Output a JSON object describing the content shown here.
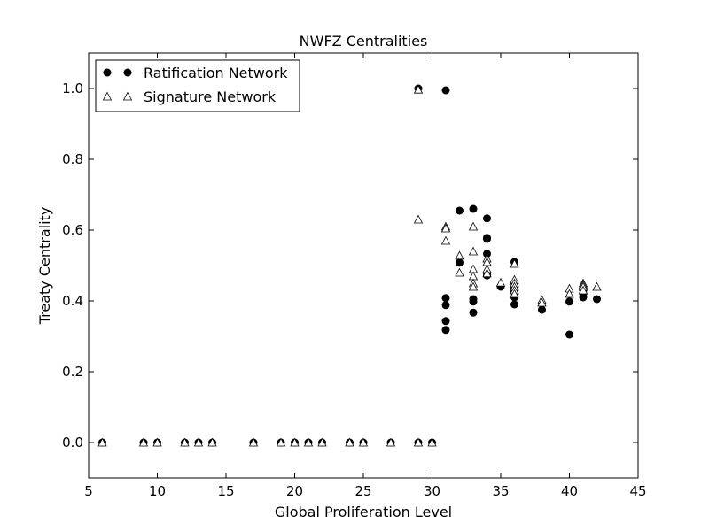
{
  "chart_data": {
    "type": "scatter",
    "title": "NWFZ Centralities",
    "xlabel": "Global Proliferation Level",
    "ylabel": "Treaty Centrality",
    "xlim": [
      5,
      45
    ],
    "ylim": [
      -0.1,
      1.1
    ],
    "xticks": [
      "5",
      "10",
      "15",
      "20",
      "25",
      "30",
      "35",
      "40",
      "45"
    ],
    "yticks": [
      "0.0",
      "0.2",
      "0.4",
      "0.6",
      "0.8",
      "1.0"
    ],
    "grid": false,
    "legend": "top-left",
    "series": [
      {
        "name": "Ratification Network",
        "marker": "filled-circle",
        "color": "#000000",
        "points": [
          [
            6,
            0.0
          ],
          [
            9,
            0.0
          ],
          [
            10,
            0.0
          ],
          [
            12,
            0.0
          ],
          [
            13,
            0.0
          ],
          [
            14,
            0.0
          ],
          [
            17,
            0.0
          ],
          [
            19,
            0.0
          ],
          [
            20,
            0.0
          ],
          [
            21,
            0.0
          ],
          [
            22,
            0.0
          ],
          [
            24,
            0.0
          ],
          [
            25,
            0.0
          ],
          [
            27,
            0.0
          ],
          [
            29,
            0.0
          ],
          [
            30,
            0.0
          ],
          [
            29,
            1.0
          ],
          [
            31,
            0.995
          ],
          [
            31,
            0.408
          ],
          [
            31,
            0.388
          ],
          [
            31,
            0.343
          ],
          [
            31,
            0.318
          ],
          [
            32,
            0.655
          ],
          [
            32,
            0.508
          ],
          [
            33,
            0.66
          ],
          [
            33,
            0.405
          ],
          [
            33,
            0.398
          ],
          [
            33,
            0.367
          ],
          [
            34,
            0.633
          ],
          [
            34,
            0.578
          ],
          [
            34,
            0.575
          ],
          [
            34,
            0.533
          ],
          [
            34,
            0.478
          ],
          [
            34,
            0.472
          ],
          [
            35,
            0.44
          ],
          [
            36,
            0.51
          ],
          [
            36,
            0.45
          ],
          [
            36,
            0.435
          ],
          [
            36,
            0.425
          ],
          [
            36,
            0.41
          ],
          [
            36,
            0.39
          ],
          [
            38,
            0.375
          ],
          [
            40,
            0.398
          ],
          [
            40,
            0.305
          ],
          [
            41,
            0.43
          ],
          [
            41,
            0.42
          ],
          [
            41,
            0.41
          ],
          [
            42,
            0.405
          ]
        ]
      },
      {
        "name": "Signature Network",
        "marker": "open-triangle",
        "color": "#000000",
        "points": [
          [
            6,
            0.0
          ],
          [
            9,
            0.0
          ],
          [
            10,
            0.0
          ],
          [
            12,
            0.0
          ],
          [
            13,
            0.0
          ],
          [
            14,
            0.0
          ],
          [
            17,
            0.0
          ],
          [
            19,
            0.0
          ],
          [
            20,
            0.0
          ],
          [
            21,
            0.0
          ],
          [
            22,
            0.0
          ],
          [
            24,
            0.0
          ],
          [
            25,
            0.0
          ],
          [
            27,
            0.0
          ],
          [
            29,
            0.0
          ],
          [
            30,
            0.0
          ],
          [
            29,
            0.997
          ],
          [
            29,
            0.63
          ],
          [
            31,
            0.61
          ],
          [
            31,
            0.605
          ],
          [
            31,
            0.57
          ],
          [
            32,
            0.528
          ],
          [
            32,
            0.48
          ],
          [
            33,
            0.61
          ],
          [
            33,
            0.54
          ],
          [
            33,
            0.49
          ],
          [
            33,
            0.47
          ],
          [
            33,
            0.45
          ],
          [
            33,
            0.44
          ],
          [
            34,
            0.52
          ],
          [
            34,
            0.51
          ],
          [
            34,
            0.49
          ],
          [
            34,
            0.478
          ],
          [
            35,
            0.452
          ],
          [
            36,
            0.505
          ],
          [
            36,
            0.46
          ],
          [
            36,
            0.45
          ],
          [
            36,
            0.44
          ],
          [
            36,
            0.43
          ],
          [
            36,
            0.42
          ],
          [
            38,
            0.403
          ],
          [
            38,
            0.395
          ],
          [
            40,
            0.435
          ],
          [
            40,
            0.42
          ],
          [
            41,
            0.45
          ],
          [
            41,
            0.445
          ],
          [
            41,
            0.44
          ],
          [
            41,
            0.43
          ],
          [
            42,
            0.44
          ]
        ]
      }
    ]
  }
}
